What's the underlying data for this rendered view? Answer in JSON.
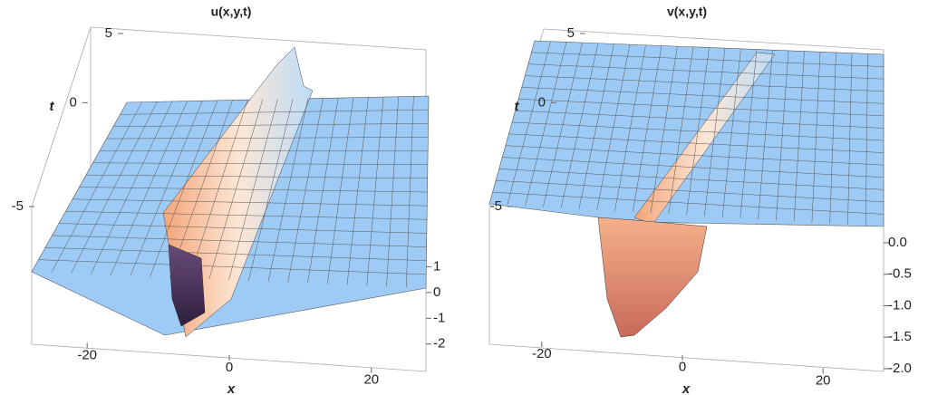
{
  "chart_data": [
    {
      "type": "surface3d",
      "title": "u(x,y,t)",
      "x_label": "x",
      "y_label": "t",
      "xlim": [
        -25,
        25
      ],
      "xticks": [
        -20,
        0,
        20
      ],
      "ylim": [
        -5,
        5
      ],
      "yticks": [
        -5,
        0,
        5
      ],
      "zlim": [
        -2.5,
        1.7
      ],
      "zticks": [
        -2,
        -1,
        0,
        1
      ],
      "color": "#9ecbf5"
    },
    {
      "type": "surface3d",
      "title": "v(x,y,t)",
      "x_label": "x",
      "y_label": "t",
      "xlim": [
        -25,
        25
      ],
      "xticks": [
        -20,
        0,
        20
      ],
      "ylim": [
        -5,
        5
      ],
      "yticks": [
        -5,
        0,
        5
      ],
      "zlim": [
        -2,
        0.1
      ],
      "zticks": [
        {
          "value": 0,
          "label": "0.0"
        },
        {
          "value": -0.5,
          "label": "-0.5"
        },
        {
          "value": -1,
          "label": "-1.0"
        },
        {
          "value": -1.5,
          "label": "-1.5"
        },
        {
          "value": -2,
          "label": "-2.0"
        }
      ],
      "color": "#9ecbf5"
    }
  ]
}
